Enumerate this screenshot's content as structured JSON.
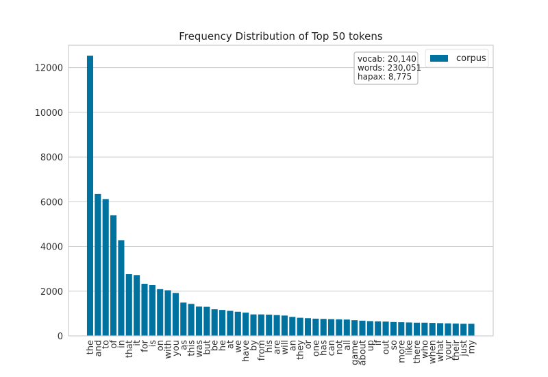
{
  "chart_data": {
    "type": "bar",
    "title": "Frequency Distribution of Top 50 tokens",
    "xlabel": "",
    "ylabel": "",
    "ylim": [
      0,
      13000
    ],
    "yticks": [
      0,
      2000,
      4000,
      6000,
      8000,
      10000,
      12000
    ],
    "grid": true,
    "categories": [
      "the",
      "and",
      "to",
      "of",
      "in",
      "that",
      "it",
      "for",
      "is",
      "on",
      "with",
      "you",
      "as",
      "this",
      "was",
      "but",
      "be",
      "he",
      "at",
      "we",
      "have",
      "by",
      "from",
      "his",
      "are",
      "will",
      "an",
      "they",
      "or",
      "one",
      "has",
      "can",
      "not",
      "all",
      "game",
      "about",
      "up",
      "if",
      "out",
      "so",
      "more",
      "like",
      "there",
      "who",
      "when",
      "what",
      "your",
      "their",
      "just",
      "my"
    ],
    "series": [
      {
        "name": "corpus",
        "color": "#0072a0",
        "values": [
          12530,
          6350,
          6120,
          5390,
          4280,
          2760,
          2720,
          2330,
          2270,
          2090,
          2040,
          1920,
          1490,
          1430,
          1310,
          1300,
          1190,
          1160,
          1120,
          1080,
          1040,
          960,
          960,
          950,
          930,
          910,
          850,
          810,
          790,
          770,
          760,
          750,
          740,
          730,
          700,
          680,
          660,
          650,
          640,
          620,
          610,
          600,
          590,
          590,
          580,
          570,
          560,
          550,
          540,
          540
        ]
      }
    ],
    "legend": {
      "position": "top-right",
      "entries": [
        "corpus"
      ]
    },
    "annotation": {
      "position": "top-right",
      "lines": [
        "vocab: 20,140",
        "words: 230,051",
        "hapax: 8,775"
      ]
    }
  }
}
